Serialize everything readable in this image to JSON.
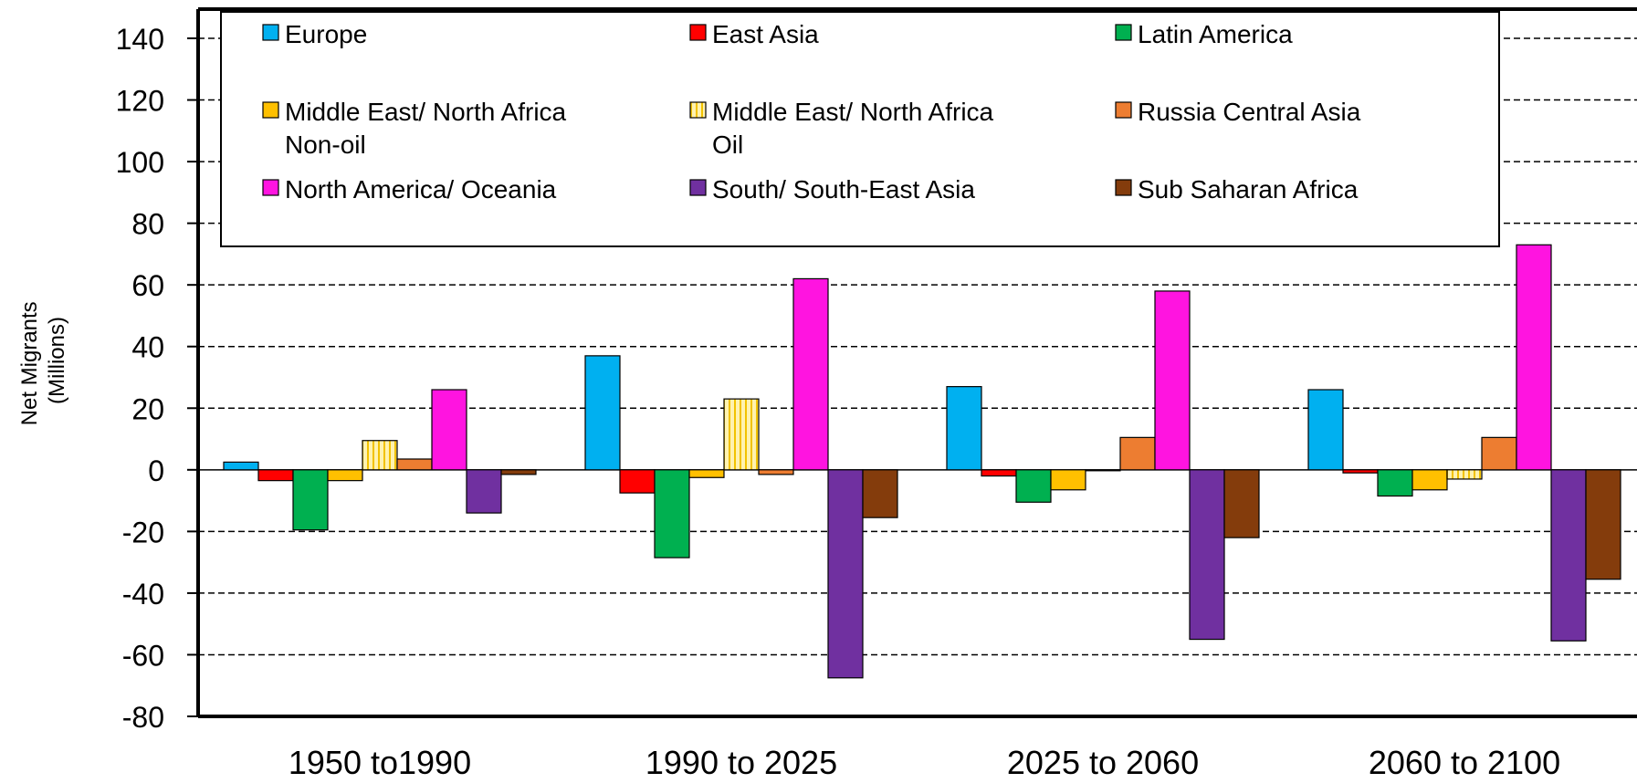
{
  "chart_data": {
    "type": "bar",
    "title": "",
    "xlabel": "",
    "ylabel_lines": [
      "Net Migrants",
      "(Millions)"
    ],
    "ylim": [
      -80,
      140
    ],
    "yticks": [
      140,
      120,
      100,
      80,
      60,
      40,
      20,
      0,
      -20,
      -40,
      -60,
      -80
    ],
    "grid": "horizontal-dashed",
    "legend_position": "top",
    "categories": [
      "1950 to1990",
      "1990 to 2025",
      "2025 to 2060",
      "2060 to 2100"
    ],
    "series": [
      {
        "name": "Europe",
        "color": "#00B0F0",
        "pattern": "solid",
        "values": [
          2.5,
          37,
          27,
          26
        ]
      },
      {
        "name": "East Asia",
        "color": "#FF0000",
        "pattern": "solid",
        "values": [
          -3.5,
          -7.5,
          -2,
          -1
        ]
      },
      {
        "name": "Latin America",
        "color": "#00B050",
        "pattern": "solid",
        "values": [
          -19.5,
          -28.5,
          -10.5,
          -8.5
        ]
      },
      {
        "name": "Middle East/ North Africa Non-oil",
        "legend_lines": [
          "Middle East/ North Africa",
          "Non-oil"
        ],
        "color": "#FFC000",
        "pattern": "solid",
        "values": [
          -3.5,
          -2.5,
          -6.5,
          -6.5
        ]
      },
      {
        "name": "Middle East/ North Africa Oil",
        "legend_lines": [
          "Middle East/ North Africa",
          "Oil"
        ],
        "color": "#FFE699",
        "pattern": "vertical-stripes",
        "values": [
          9.5,
          23,
          -0.3,
          -3
        ]
      },
      {
        "name": "Russia Central Asia",
        "color": "#ED7D31",
        "pattern": "solid",
        "values": [
          3.5,
          -1.5,
          10.5,
          10.5
        ]
      },
      {
        "name": "North America/ Oceania",
        "color": "#FF14E0",
        "pattern": "solid",
        "values": [
          26,
          62,
          58,
          73
        ]
      },
      {
        "name": "South/ South-East Asia",
        "color": "#7030A0",
        "pattern": "solid",
        "values": [
          -14,
          -67.5,
          -55,
          -55.5
        ]
      },
      {
        "name": "Sub Saharan Africa",
        "color": "#843C0C",
        "pattern": "solid",
        "values": [
          -1.5,
          -15.5,
          -22,
          -35.5
        ]
      }
    ]
  }
}
